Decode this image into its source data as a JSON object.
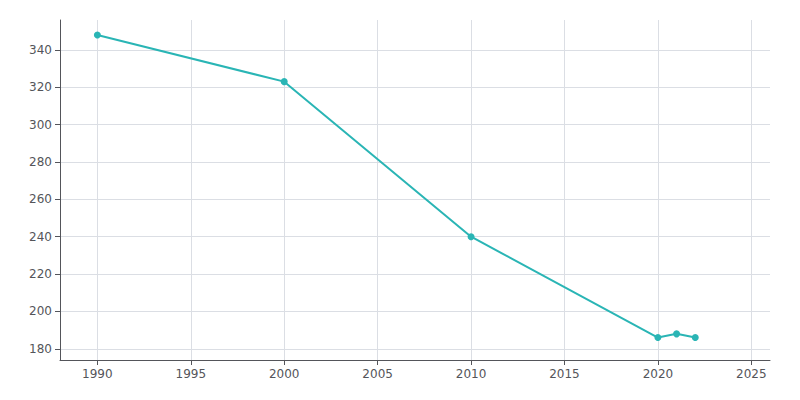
{
  "chart_data": {
    "type": "line",
    "x": [
      1990,
      2000,
      2010,
      2020,
      2021,
      2022
    ],
    "values": [
      348,
      323,
      240,
      186,
      188,
      186
    ],
    "color": "#2ab5b5",
    "marker": "circle",
    "xlim": [
      1988,
      2026
    ],
    "ylim": [
      174,
      356
    ],
    "xticks": [
      1990,
      1995,
      2000,
      2005,
      2010,
      2015,
      2020,
      2025
    ],
    "yticks": [
      180,
      200,
      220,
      240,
      260,
      280,
      300,
      320,
      340
    ],
    "grid": true
  }
}
